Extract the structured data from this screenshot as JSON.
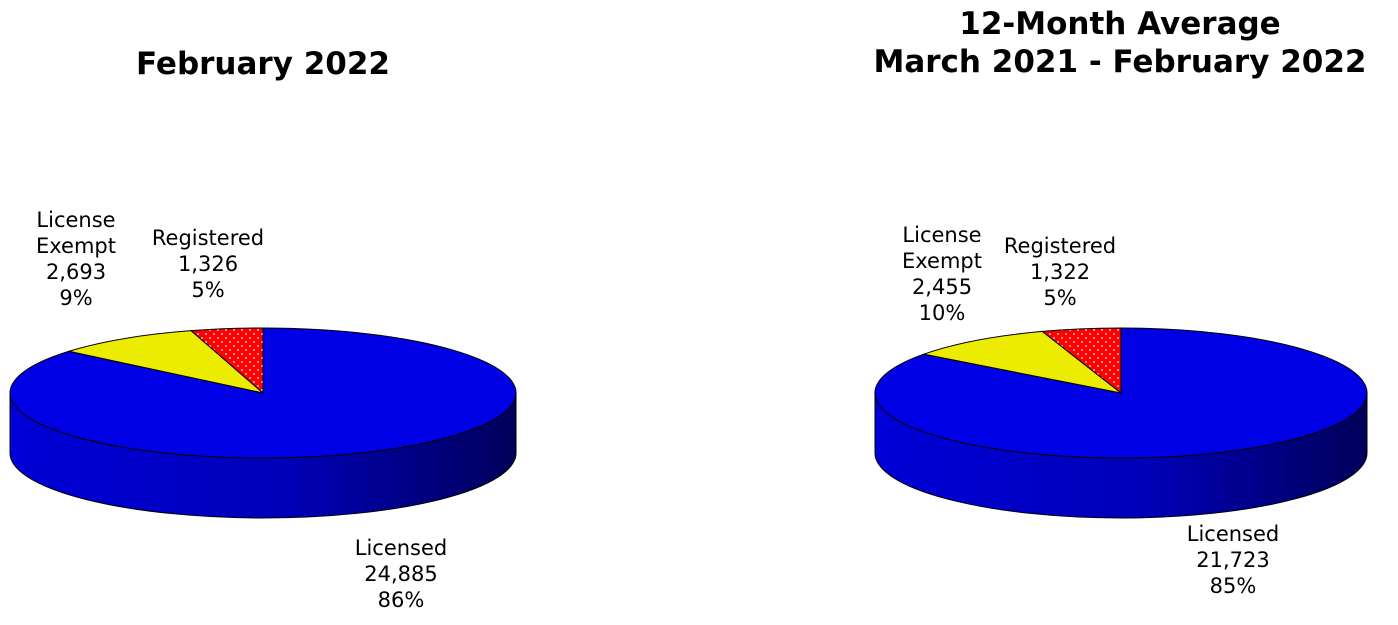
{
  "chart_data": [
    {
      "type": "pie",
      "title": "February 2022",
      "categories": [
        "Licensed",
        "License Exempt",
        "Registered"
      ],
      "values": [
        24885,
        2693,
        1326
      ],
      "percent_labels": [
        "86%",
        "9%",
        "5%"
      ],
      "value_labels": [
        "24,885",
        "2,693",
        "1,326"
      ],
      "label_lines": [
        [
          "Licensed"
        ],
        [
          "License",
          "Exempt"
        ],
        [
          "Registered"
        ]
      ],
      "colors": [
        "#0000e6",
        "#ecec00",
        "#ff0000"
      ],
      "three_d": true,
      "legend": "none"
    },
    {
      "type": "pie",
      "title": "12-Month Average\nMarch 2021 - February 2022",
      "categories": [
        "Licensed",
        "License Exempt",
        "Registered"
      ],
      "values": [
        21723,
        2455,
        1322
      ],
      "percent_labels": [
        "85%",
        "10%",
        "5%"
      ],
      "value_labels": [
        "21,723",
        "2,455",
        "1,322"
      ],
      "label_lines": [
        [
          "Licensed"
        ],
        [
          "License",
          "Exempt"
        ],
        [
          "Registered"
        ]
      ],
      "colors": [
        "#0000e6",
        "#ecec00",
        "#ff0000"
      ],
      "three_d": true,
      "legend": "none"
    }
  ]
}
